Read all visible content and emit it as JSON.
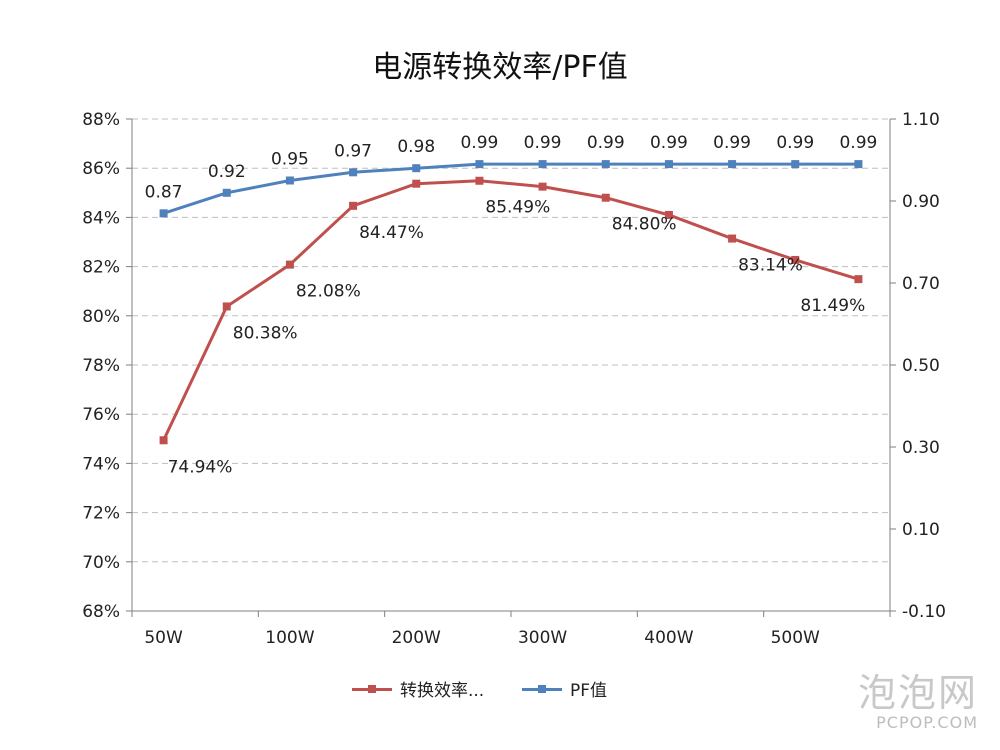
{
  "chart_data": {
    "type": "line",
    "title": "电源转换效率/PF值",
    "categories": [
      "50W",
      "",
      "100W",
      "",
      "200W",
      "",
      "300W",
      "",
      "400W",
      "",
      "500W",
      ""
    ],
    "x_tick_labels": [
      "50W",
      "100W",
      "200W",
      "300W",
      "400W",
      "500W"
    ],
    "series": [
      {
        "name": "转换效率...",
        "axis": "left",
        "color": "#c0504d",
        "values": [
          74.94,
          80.38,
          82.08,
          84.47,
          85.37,
          85.49,
          85.25,
          84.8,
          84.1,
          83.14,
          82.27,
          81.49
        ],
        "labels": [
          "74.94%",
          "80.38%",
          "82.08%",
          "84.47%",
          "",
          "85.49%",
          "",
          "84.80%",
          "",
          "83.14%",
          "",
          "81.49%"
        ]
      },
      {
        "name": "PF值",
        "axis": "right",
        "color": "#4f81bd",
        "values": [
          0.87,
          0.92,
          0.95,
          0.97,
          0.98,
          0.99,
          0.99,
          0.99,
          0.99,
          0.99,
          0.99,
          0.99
        ],
        "labels": [
          "0.87",
          "0.92",
          "0.95",
          "0.97",
          "0.98",
          "0.99",
          "0.99",
          "0.99",
          "0.99",
          "0.99",
          "0.99",
          "0.99"
        ]
      }
    ],
    "y_left": {
      "min": 68,
      "max": 88,
      "step": 2,
      "tick_labels": [
        "68%",
        "70%",
        "72%",
        "74%",
        "76%",
        "78%",
        "80%",
        "82%",
        "84%",
        "86%",
        "88%"
      ]
    },
    "y_right": {
      "min": -0.1,
      "max": 1.1,
      "step": 0.2,
      "tick_labels": [
        "-0.10",
        "0.10",
        "0.30",
        "0.50",
        "0.70",
        "0.90",
        "1.10"
      ]
    },
    "grid": true,
    "legend_position": "bottom"
  },
  "watermark": {
    "cn": "泡泡网",
    "en": "PCPOP.COM"
  }
}
